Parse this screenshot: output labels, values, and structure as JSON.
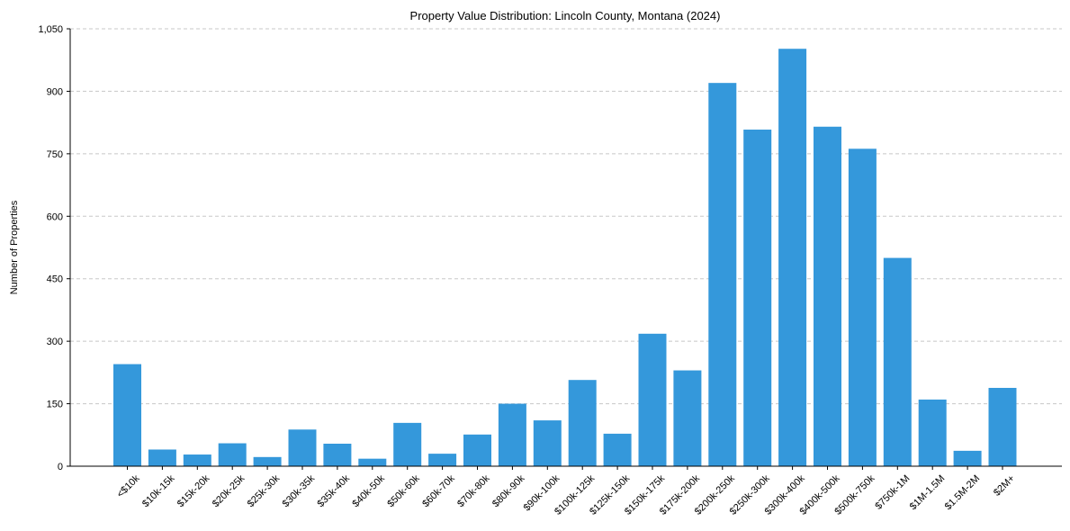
{
  "chart_data": {
    "type": "bar",
    "title": "Property Value Distribution: Lincoln County, Montana (2024)",
    "xlabel": "",
    "ylabel": "Number of Properties",
    "ylim": [
      0,
      1050
    ],
    "yticks": [
      0,
      150,
      300,
      450,
      600,
      750,
      900,
      1050
    ],
    "ytick_labels": [
      "0",
      "150",
      "300",
      "450",
      "600",
      "750",
      "900",
      "1,050"
    ],
    "grid": "horizontal dashed",
    "bar_color": "#3498db",
    "categories": [
      "<$10k",
      "$10k-15k",
      "$15k-20k",
      "$20k-25k",
      "$25k-30k",
      "$30k-35k",
      "$35k-40k",
      "$40k-50k",
      "$50k-60k",
      "$60k-70k",
      "$70k-80k",
      "$80k-90k",
      "$90k-100k",
      "$100k-125k",
      "$125k-150k",
      "$150k-175k",
      "$175k-200k",
      "$200k-250k",
      "$250k-300k",
      "$300k-400k",
      "$400k-500k",
      "$500k-750k",
      "$750k-1M",
      "$1M-1.5M",
      "$1.5M-2M",
      "$2M+"
    ],
    "values": [
      245,
      40,
      28,
      55,
      22,
      88,
      54,
      18,
      104,
      30,
      76,
      150,
      110,
      207,
      78,
      318,
      230,
      920,
      808,
      1002,
      815,
      762,
      500,
      160,
      37,
      188
    ]
  }
}
